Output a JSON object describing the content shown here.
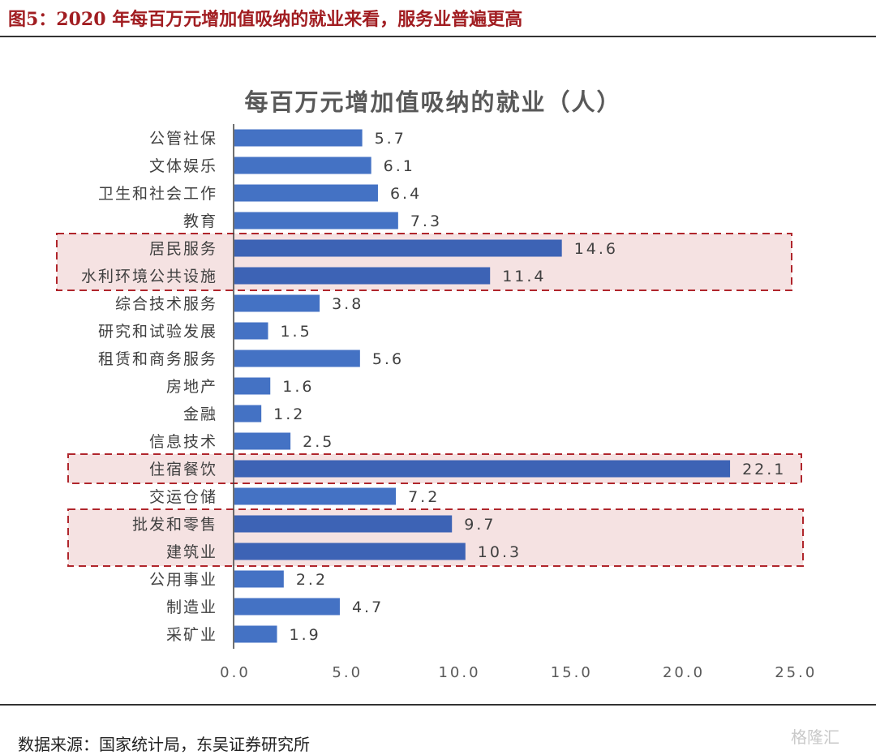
{
  "figure": {
    "caption": "图5：2020 年每百万元增加值吸纳的就业来看，服务业普遍更高",
    "source": "数据来源：国家统计局，东吴证券研究所",
    "watermark": "格隆汇"
  },
  "colors": {
    "bar": "#4472c4",
    "bar_highlight": "#3d63b5",
    "highlight_fill": "#f5e2e2",
    "highlight_border": "#b0262c",
    "caption": "#a11d21"
  },
  "chart_data": {
    "type": "bar",
    "orientation": "horizontal",
    "title": "每百万元增加值吸纳的就业（人）",
    "xlabel": "",
    "ylabel": "",
    "xlim": [
      0,
      25
    ],
    "x_ticks": [
      "0.0",
      "5.0",
      "10.0",
      "15.0",
      "20.0",
      "25.0"
    ],
    "grid": false,
    "legend": "none",
    "categories": [
      "公管社保",
      "文体娱乐",
      "卫生和社会工作",
      "教育",
      "居民服务",
      "水利环境公共设施",
      "综合技术服务",
      "研究和试验发展",
      "租赁和商务服务",
      "房地产",
      "金融",
      "信息技术",
      "住宿餐饮",
      "交运仓储",
      "批发和零售",
      "建筑业",
      "公用事业",
      "制造业",
      "采矿业"
    ],
    "values": [
      5.7,
      6.1,
      6.4,
      7.3,
      14.6,
      11.4,
      3.8,
      1.5,
      5.6,
      1.6,
      1.2,
      2.5,
      22.1,
      7.2,
      9.7,
      10.3,
      2.2,
      4.7,
      1.9
    ],
    "value_labels": [
      "5.7",
      "6.1",
      "6.4",
      "7.3",
      "14.6",
      "11.4",
      "3.8",
      "1.5",
      "5.6",
      "1.6",
      "1.2",
      "2.5",
      "22.1",
      "7.2",
      "9.7",
      "10.3",
      "2.2",
      "4.7",
      "1.9"
    ],
    "highlight_groups": [
      [
        "居民服务",
        "水利环境公共设施"
      ],
      [
        "住宿餐饮"
      ],
      [
        "批发和零售",
        "建筑业"
      ]
    ]
  }
}
